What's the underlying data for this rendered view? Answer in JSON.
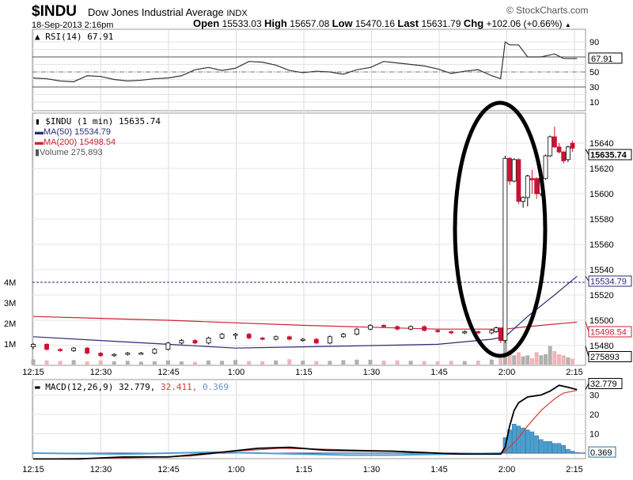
{
  "header": {
    "symbol": "$INDU",
    "name": "Dow Jones Industrial Average",
    "exchange": "INDX",
    "datetime": "18-Sep-2013 2:16pm",
    "open_label": "Open",
    "open": "15533.03",
    "high_label": "High",
    "high": "15657.08",
    "low_label": "Low",
    "low": "15470.16",
    "last_label": "Last",
    "last": "15631.79",
    "chg_label": "Chg",
    "chg": "+102.06 (+0.66%)",
    "up_arrow": "▲",
    "brand": "© StockCharts.com"
  },
  "colors": {
    "up": "#ffffff",
    "down": "#cc1133",
    "ma50": "#2a2a7a",
    "ma200": "#cc2233",
    "macd": "#000000",
    "signal": "#d43a3a",
    "hist": "#4a9fd0",
    "vol_up": "#b0b0b0",
    "vol_down": "#f0b4b8"
  },
  "chart_data": [
    {
      "type": "line",
      "title": "RSI(14) 67.91",
      "legend": "RSI(14) 67.91",
      "current_label": "67.91",
      "y_ticks": [
        "90",
        "50",
        "30",
        "10"
      ],
      "ylim": [
        0,
        100
      ],
      "x_minutes_from_1215": [
        0,
        3,
        6,
        9,
        12,
        15,
        18,
        21,
        24,
        27,
        30,
        33,
        36,
        39,
        42,
        45,
        48,
        51,
        54,
        57,
        60,
        63,
        66,
        69,
        72,
        75,
        78,
        81,
        84,
        87,
        90,
        93,
        96,
        99,
        102,
        104,
        105,
        106,
        108,
        110,
        113,
        116,
        118,
        121
      ],
      "values": [
        42,
        41,
        38,
        37,
        45,
        44,
        40,
        38,
        39,
        41,
        42,
        45,
        53,
        56,
        52,
        55,
        64,
        63,
        59,
        52,
        49,
        51,
        50,
        47,
        53,
        56,
        64,
        62,
        60,
        58,
        54,
        48,
        51,
        53,
        45,
        41,
        90,
        86,
        86,
        70,
        70,
        74,
        68,
        67.91
      ]
    },
    {
      "type": "candlestick",
      "title": "$INDU (1 min) 15635.74",
      "legend": {
        "main": "$INDU (1 min) 15635.74",
        "ma50": "MA(50) 15534.79",
        "ma200": "MA(200) 15498.54",
        "volume": "Volume 275,893"
      },
      "labels": {
        "last": "15635.74",
        "ma50": "15534.79",
        "ma200": "15498.54",
        "volume": "275893"
      },
      "y_ticks": [
        "15640",
        "15620",
        "15600",
        "15580",
        "15560",
        "15540",
        "15520",
        "15500",
        "15480"
      ],
      "volume_ticks": [
        "4M",
        "3M",
        "2M",
        "1M"
      ],
      "ylim": [
        15470,
        15660
      ],
      "candles_ohlc_by_minute": [
        [
          0,
          15479,
          15482,
          15477,
          15481
        ],
        [
          3,
          15481,
          15482,
          15476,
          15477
        ],
        [
          6,
          15477,
          15478,
          15475,
          15476
        ],
        [
          9,
          15476,
          15479,
          15475,
          15478
        ],
        [
          12,
          15478,
          15479,
          15473,
          15474
        ],
        [
          15,
          15474,
          15475,
          15471,
          15472
        ],
        [
          18,
          15472,
          15474,
          15471,
          15473
        ],
        [
          21,
          15473,
          15475,
          15472,
          15474
        ],
        [
          24,
          15474,
          15475,
          15473,
          15474
        ],
        [
          27,
          15474,
          15478,
          15473,
          15477
        ],
        [
          30,
          15477,
          15483,
          15476,
          15482
        ],
        [
          33,
          15482,
          15485,
          15481,
          15484
        ],
        [
          36,
          15484,
          15485,
          15481,
          15482
        ],
        [
          39,
          15482,
          15487,
          15481,
          15486
        ],
        [
          42,
          15486,
          15490,
          15485,
          15489
        ],
        [
          45,
          15489,
          15490,
          15485,
          15489
        ],
        [
          48,
          15489,
          15490,
          15485,
          15486
        ],
        [
          51,
          15486,
          15487,
          15484,
          15485
        ],
        [
          54,
          15485,
          15488,
          15484,
          15487
        ],
        [
          57,
          15487,
          15488,
          15484,
          15485
        ],
        [
          60,
          15485,
          15486,
          15483,
          15485
        ],
        [
          63,
          15485,
          15486,
          15481,
          15482
        ],
        [
          66,
          15482,
          15488,
          15481,
          15487
        ],
        [
          69,
          15487,
          15490,
          15486,
          15489
        ],
        [
          72,
          15489,
          15494,
          15488,
          15493
        ],
        [
          75,
          15493,
          15497,
          15492,
          15496
        ],
        [
          78,
          15496,
          15497,
          15494,
          15495
        ],
        [
          81,
          15495,
          15496,
          15492,
          15493
        ],
        [
          84,
          15493,
          15496,
          15492,
          15495
        ],
        [
          87,
          15495,
          15496,
          15491,
          15492
        ],
        [
          90,
          15492,
          15493,
          15490,
          15491
        ],
        [
          93,
          15491,
          15492,
          15489,
          15490
        ],
        [
          96,
          15490,
          15492,
          15489,
          15491
        ],
        [
          99,
          15491,
          15492,
          15489,
          15490
        ],
        [
          102,
          15490,
          15493,
          15489,
          15492
        ],
        [
          103,
          15491,
          15495,
          15490,
          15494
        ],
        [
          104,
          15494,
          15494,
          15482,
          15484
        ],
        [
          105,
          15484,
          15630,
          15482,
          15628
        ],
        [
          106,
          15628,
          15629,
          15607,
          15610
        ],
        [
          107,
          15610,
          15628,
          15609,
          15627
        ],
        [
          108,
          15627,
          15628,
          15592,
          15594
        ],
        [
          109,
          15594,
          15598,
          15589,
          15597
        ],
        [
          110,
          15597,
          15615,
          15590,
          15614
        ],
        [
          111,
          15612,
          15619,
          15600,
          15611
        ],
        [
          112,
          15612,
          15613,
          15596,
          15600
        ],
        [
          113,
          15600,
          15613,
          15598,
          15612
        ],
        [
          114,
          15612,
          15631,
          15611,
          15630
        ],
        [
          115,
          15630,
          15646,
          15629,
          15645
        ],
        [
          116,
          15645,
          15653,
          15636,
          15637
        ],
        [
          117,
          15637,
          15640,
          15632,
          15633
        ],
        [
          118,
          15633,
          15634,
          15624,
          15626
        ],
        [
          119,
          15627,
          15638,
          15625,
          15637
        ],
        [
          120,
          15640,
          15642,
          15633,
          15636
        ]
      ],
      "ma200_by_minute": [
        [
          0,
          15503
        ],
        [
          30,
          15500
        ],
        [
          60,
          15496
        ],
        [
          90,
          15493
        ],
        [
          105,
          15493
        ],
        [
          110,
          15495
        ],
        [
          121,
          15498.54
        ]
      ],
      "ma50_by_minute": [
        [
          0,
          15487
        ],
        [
          15,
          15484
        ],
        [
          30,
          15481
        ],
        [
          45,
          15478
        ],
        [
          60,
          15479
        ],
        [
          90,
          15481
        ],
        [
          102,
          15485
        ],
        [
          105,
          15487
        ],
        [
          110,
          15503
        ],
        [
          116,
          15520
        ],
        [
          121,
          15534.79
        ]
      ],
      "volume_k_by_minute": [
        [
          0,
          250
        ],
        [
          3,
          200
        ],
        [
          6,
          180
        ],
        [
          9,
          220
        ],
        [
          12,
          150
        ],
        [
          15,
          200
        ],
        [
          18,
          160
        ],
        [
          21,
          180
        ],
        [
          24,
          140
        ],
        [
          27,
          160
        ],
        [
          30,
          200
        ],
        [
          33,
          150
        ],
        [
          36,
          130
        ],
        [
          39,
          200
        ],
        [
          42,
          180
        ],
        [
          45,
          220
        ],
        [
          48,
          170
        ],
        [
          51,
          160
        ],
        [
          54,
          200
        ],
        [
          57,
          260
        ],
        [
          60,
          190
        ],
        [
          63,
          170
        ],
        [
          66,
          180
        ],
        [
          69,
          210
        ],
        [
          72,
          240
        ],
        [
          75,
          230
        ],
        [
          78,
          190
        ],
        [
          81,
          200
        ],
        [
          84,
          180
        ],
        [
          87,
          170
        ],
        [
          90,
          160
        ],
        [
          93,
          180
        ],
        [
          96,
          170
        ],
        [
          99,
          190
        ],
        [
          102,
          240
        ],
        [
          104,
          300
        ],
        [
          105,
          3400
        ],
        [
          106,
          700
        ],
        [
          107,
          450
        ],
        [
          108,
          600
        ],
        [
          109,
          400
        ],
        [
          110,
          450
        ],
        [
          111,
          300
        ],
        [
          112,
          600
        ],
        [
          113,
          450
        ],
        [
          114,
          500
        ],
        [
          115,
          900
        ],
        [
          116,
          650
        ],
        [
          117,
          500
        ],
        [
          118,
          450
        ],
        [
          119,
          350
        ],
        [
          120,
          280
        ]
      ],
      "annotation": "ellipse around 2:00 spike"
    },
    {
      "type": "line",
      "title": "MACD(12,26,9) 32.779, 32.411, 0.369",
      "legend": {
        "name": "MACD(12,26,9)",
        "macd": "32.779,",
        "signal": "32.411,",
        "hist": "0.369"
      },
      "labels": {
        "macd": "32.779",
        "hist": "0.369"
      },
      "y_ticks": [
        "30",
        "20",
        "10"
      ],
      "ylim": [
        -3,
        38
      ],
      "macd_by_minute": [
        [
          0,
          -3
        ],
        [
          10,
          -3
        ],
        [
          20,
          -2
        ],
        [
          30,
          -2
        ],
        [
          40,
          0
        ],
        [
          50,
          2.5
        ],
        [
          57,
          3
        ],
        [
          65,
          1.5
        ],
        [
          80,
          1
        ],
        [
          95,
          -0.5
        ],
        [
          104,
          -0.5
        ],
        [
          105,
          3
        ],
        [
          106,
          14
        ],
        [
          107,
          22
        ],
        [
          108,
          26
        ],
        [
          110,
          29
        ],
        [
          113,
          30
        ],
        [
          115,
          32
        ],
        [
          117,
          35
        ],
        [
          119,
          34
        ],
        [
          121,
          32.779
        ]
      ],
      "signal_by_minute": [
        [
          0,
          -3
        ],
        [
          20,
          -2.5
        ],
        [
          35,
          -1.5
        ],
        [
          45,
          1
        ],
        [
          55,
          2.5
        ],
        [
          65,
          2
        ],
        [
          80,
          1
        ],
        [
          95,
          -0.5
        ],
        [
          104,
          -0.5
        ],
        [
          106,
          3
        ],
        [
          108,
          8
        ],
        [
          110,
          14
        ],
        [
          113,
          22
        ],
        [
          116,
          28
        ],
        [
          118,
          31
        ],
        [
          121,
          32.411
        ]
      ],
      "hist_by_minute": [
        [
          0,
          0
        ],
        [
          20,
          -0.5
        ],
        [
          40,
          0.5
        ],
        [
          60,
          -0.5
        ],
        [
          70,
          -1
        ],
        [
          80,
          -1
        ],
        [
          104,
          0
        ],
        [
          105,
          8
        ],
        [
          106,
          12
        ],
        [
          107,
          15
        ],
        [
          108,
          14
        ],
        [
          109,
          13
        ],
        [
          110,
          12
        ],
        [
          111,
          11
        ],
        [
          112,
          9
        ],
        [
          113,
          7
        ],
        [
          114,
          6
        ],
        [
          115,
          6
        ],
        [
          116,
          5
        ],
        [
          117,
          5
        ],
        [
          118,
          4
        ],
        [
          119,
          2
        ],
        [
          120,
          1
        ],
        [
          121,
          0.369
        ]
      ]
    }
  ],
  "x_ticks": [
    "12:15",
    "12:30",
    "12:45",
    "1:00",
    "1:15",
    "1:30",
    "1:45",
    "2:00",
    "2:15"
  ]
}
